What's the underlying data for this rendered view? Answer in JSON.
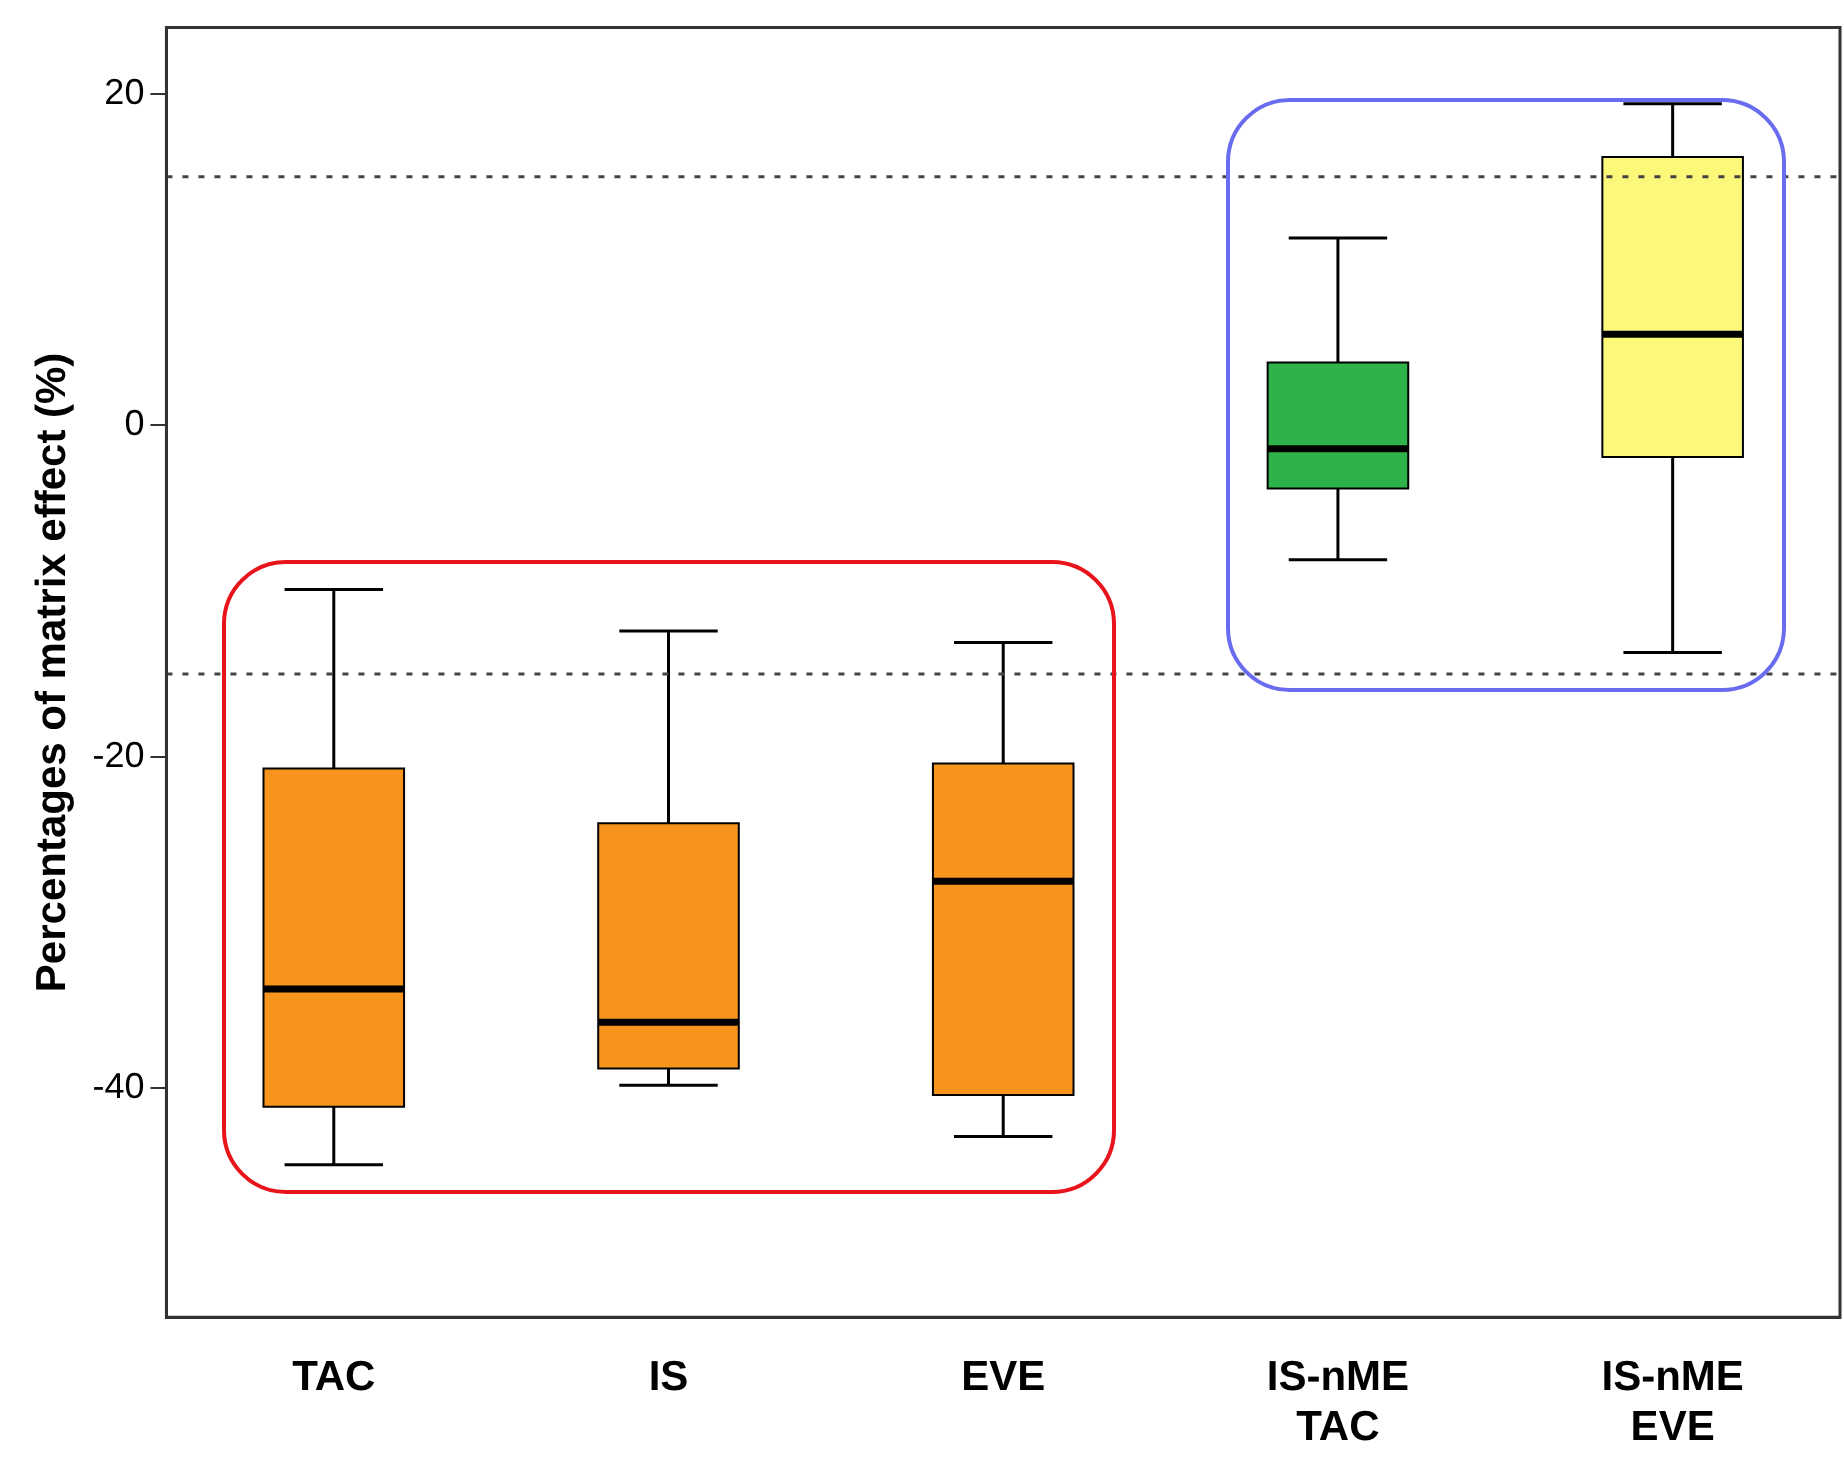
{
  "chart_data": {
    "type": "box",
    "ylabel": "Percentages of matrix effect (%)",
    "categories": [
      "TAC",
      "IS",
      "EVE",
      "IS-nME\nTAC",
      "IS-nME\nEVE"
    ],
    "colors": [
      "#f7941d",
      "#f7941d",
      "#f7941d",
      "#2db34a",
      "#fbf87a"
    ],
    "boxes": [
      {
        "low": -44.6,
        "q1": -41.1,
        "median": -34.0,
        "q3": -20.7,
        "high": -9.9
      },
      {
        "low": -39.8,
        "q1": -38.8,
        "median": -36.0,
        "q3": -24.0,
        "high": -12.4
      },
      {
        "low": -42.9,
        "q1": -40.4,
        "median": -27.5,
        "q3": -20.4,
        "high": -13.1
      },
      {
        "low": -8.1,
        "q1": -3.8,
        "median": -1.4,
        "q3": 3.8,
        "high": 11.3
      },
      {
        "low": -13.7,
        "q1": -1.9,
        "median": 5.5,
        "q3": 16.2,
        "high": 19.4
      }
    ],
    "ylim": [
      -53.8,
      24
    ],
    "yticks": [
      -40,
      -20,
      0,
      20
    ],
    "grid": false,
    "legend": false,
    "ref_lines": [
      {
        "axis": "y",
        "value": 15,
        "color": "#444444",
        "line_style": "dotted"
      },
      {
        "axis": "y",
        "value": -15,
        "color": "#444444",
        "line_style": "dotted"
      }
    ]
  }
}
